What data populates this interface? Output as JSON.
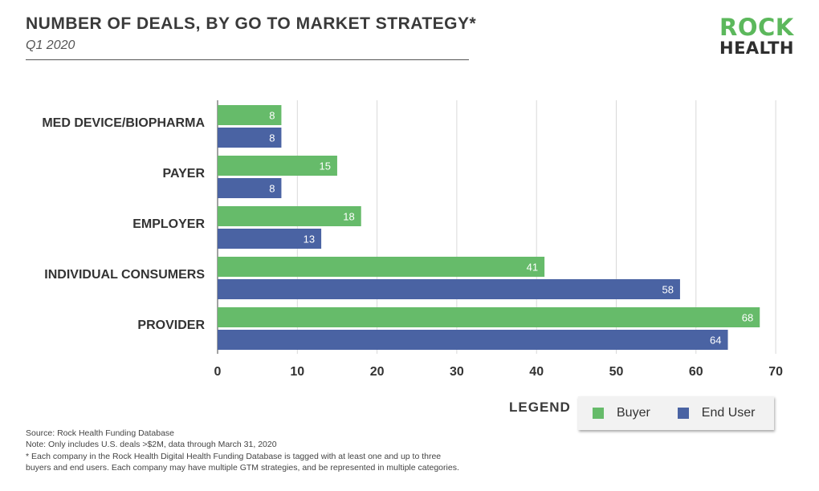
{
  "header": {
    "title": "NUMBER OF DEALS, BY GO TO MARKET STRATEGY*",
    "subtitle": "Q1 2020"
  },
  "logo": {
    "line1": "ROCK",
    "line2": "HEALTH"
  },
  "chart_data": {
    "type": "bar",
    "orientation": "horizontal",
    "categories": [
      "MED DEVICE/BIOPHARMA",
      "PAYER",
      "EMPLOYER",
      "INDIVIDUAL CONSUMERS",
      "PROVIDER"
    ],
    "series": [
      {
        "name": "Buyer",
        "color": "#66bb6a",
        "values": [
          8,
          15,
          18,
          41,
          68
        ]
      },
      {
        "name": "End User",
        "color": "#4a63a3",
        "values": [
          8,
          8,
          13,
          58,
          64
        ]
      }
    ],
    "x_ticks": [
      0,
      10,
      20,
      30,
      40,
      50,
      60,
      70
    ],
    "xlim": [
      0,
      70
    ],
    "grid": true,
    "data_labels": true,
    "legend_placement": "bottom-right"
  },
  "legend": {
    "title": "LEGEND",
    "items": [
      {
        "label": "Buyer",
        "color": "#66bb6a"
      },
      {
        "label": "End User",
        "color": "#4a63a3"
      }
    ]
  },
  "footnotes": {
    "source": "Source: Rock Health Funding Database",
    "note": "Note: Only includes U.S. deals >$2M, data through March 31, 2020",
    "asterisk_line1": "* Each company in the Rock Health Digital Health Funding Database is tagged with at least one and up to three",
    "asterisk_line2": "buyers and end users. Each company may have multiple GTM strategies, and be represented in multiple categories."
  }
}
